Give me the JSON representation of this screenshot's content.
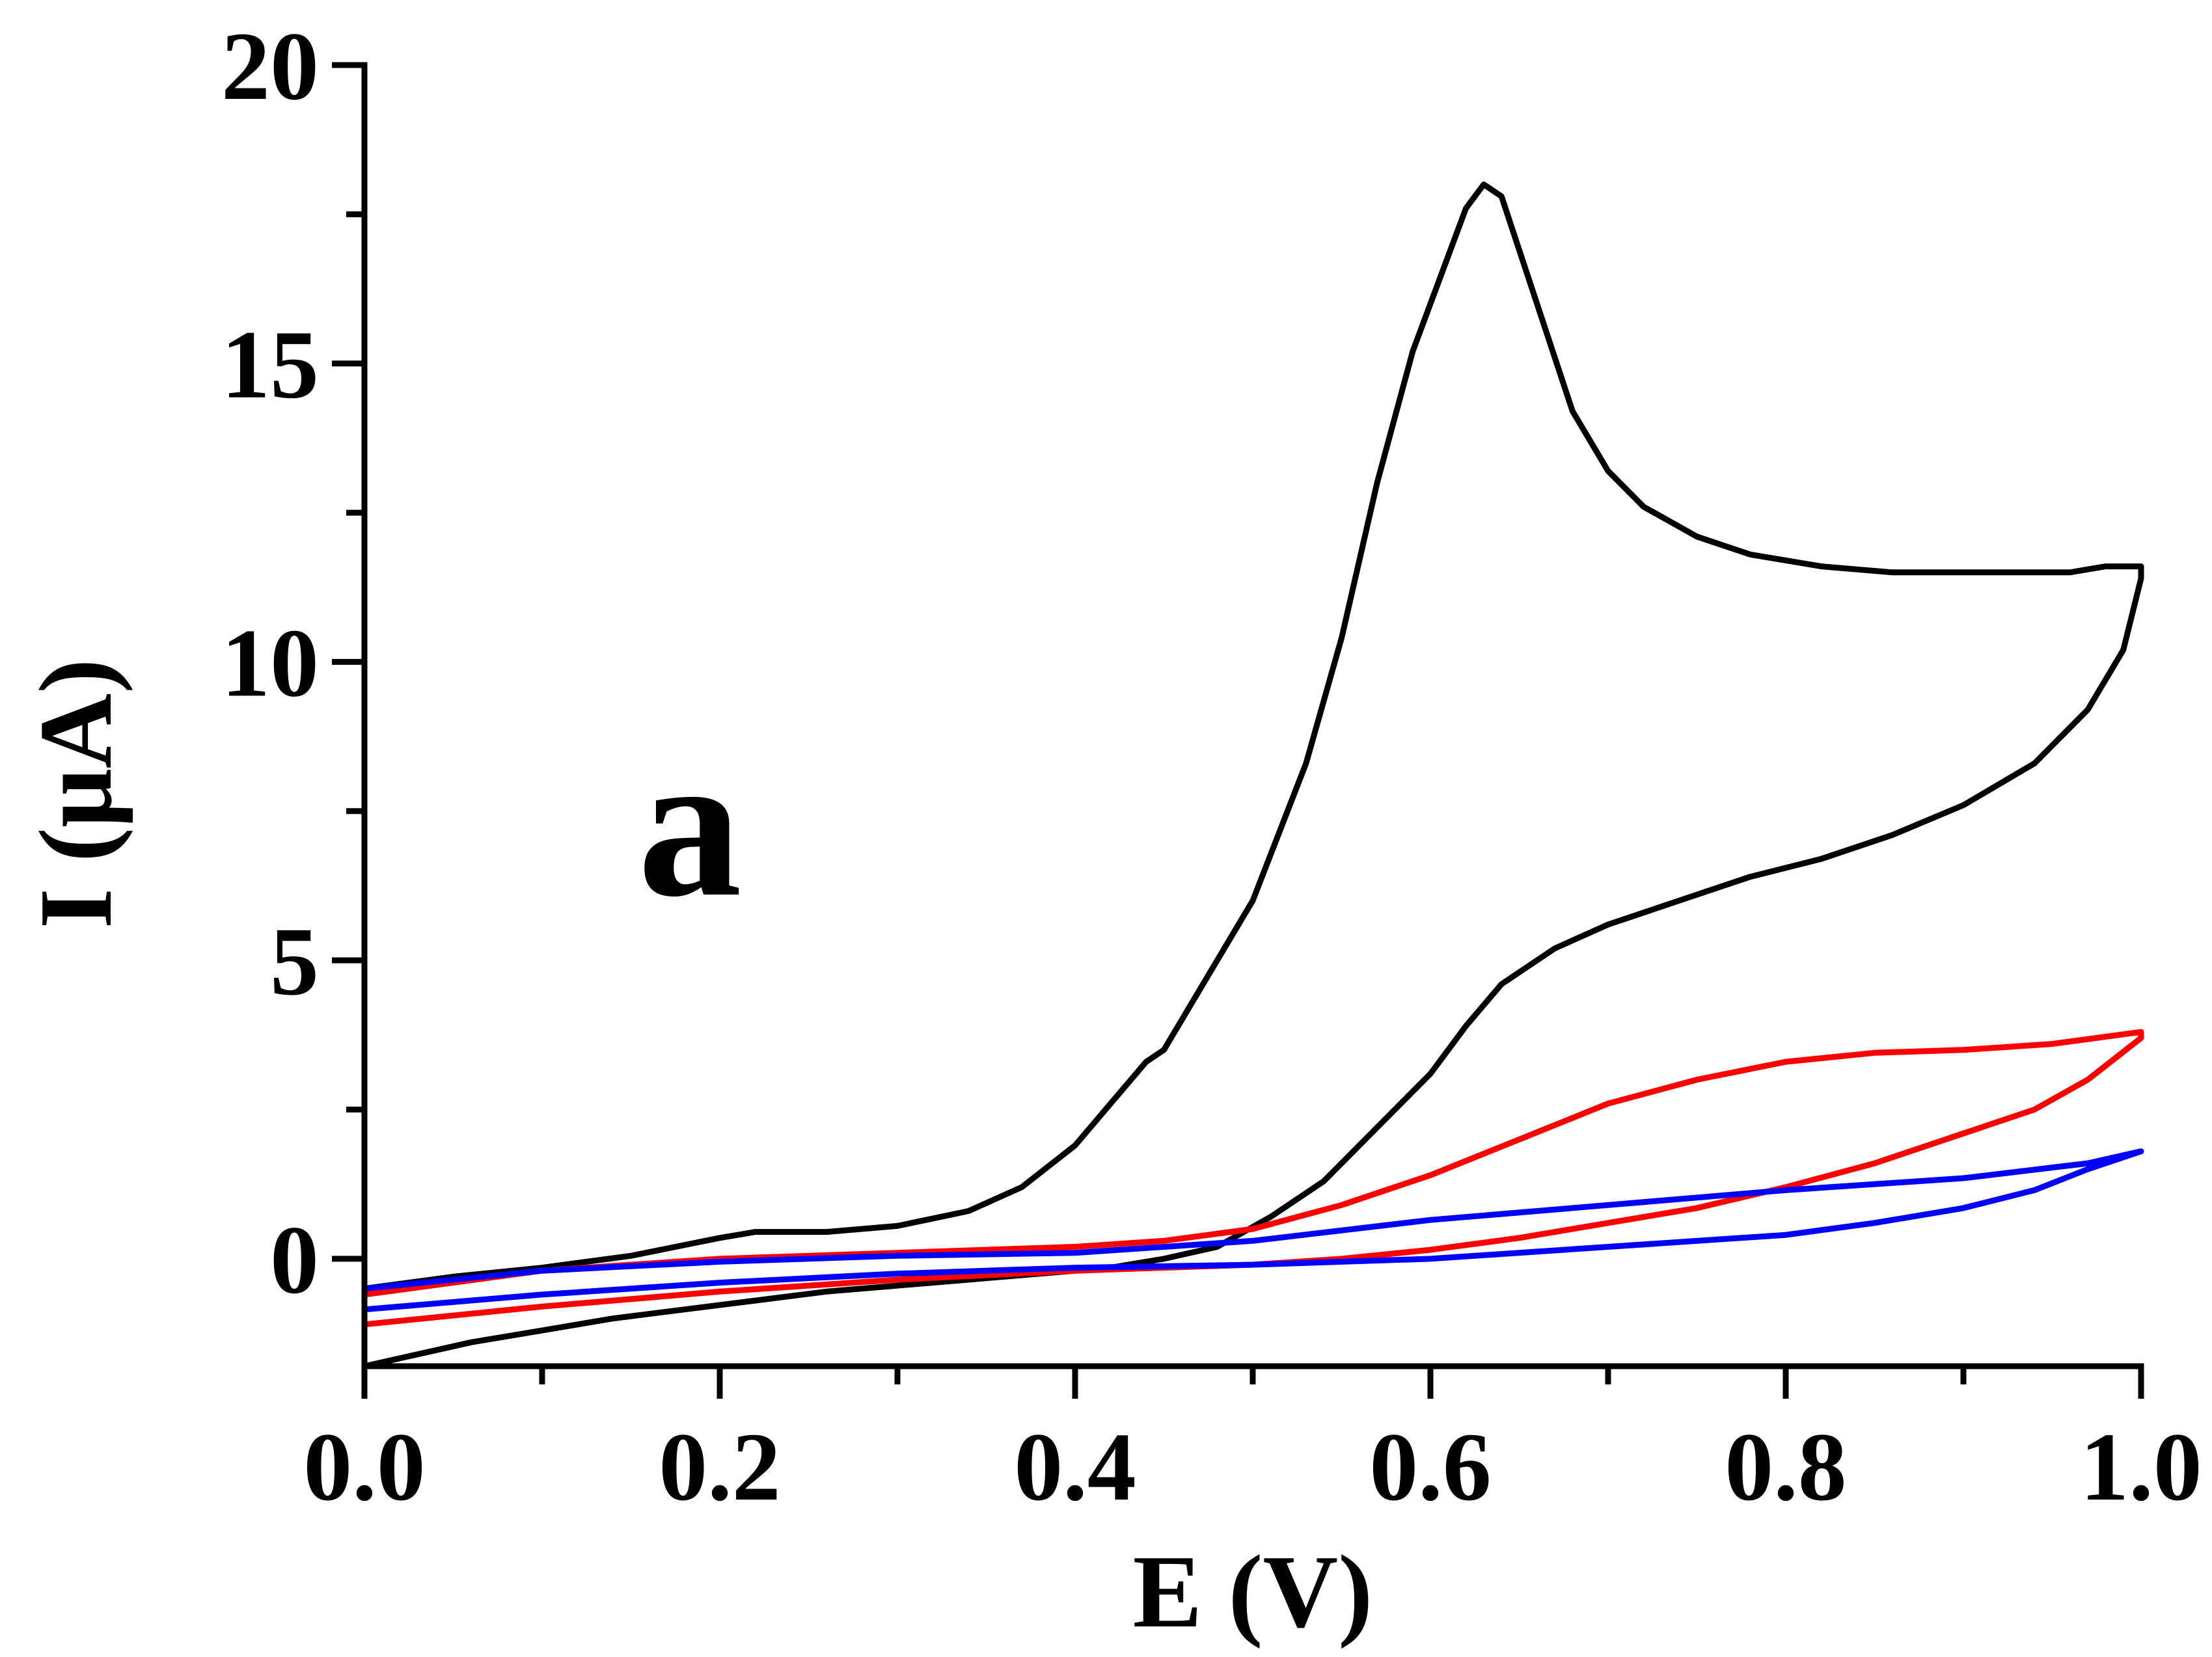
{
  "chart_data": {
    "type": "line",
    "title": "",
    "panel_label": "a",
    "xlabel": "E (V)",
    "ylabel": "I (μA)",
    "xlim": [
      0.0,
      1.0
    ],
    "ylim": [
      -1.8,
      20
    ],
    "xticks": [
      0.0,
      0.2,
      0.4,
      0.6,
      0.8,
      1.0
    ],
    "xtick_labels": [
      "0.0",
      "0.2",
      "0.4",
      "0.6",
      "0.8",
      "1.0"
    ],
    "x_minor_ticks": [
      0.1,
      0.3,
      0.5,
      0.7,
      0.9
    ],
    "yticks": [
      0,
      5,
      10,
      15,
      20
    ],
    "ytick_labels": [
      "0",
      "5",
      "10",
      "15",
      "20"
    ],
    "y_minor_ticks": [
      2.5,
      7.5,
      12.5,
      17.5
    ],
    "grid": false,
    "series": [
      {
        "name": "black",
        "color": "#000000",
        "x": [
          0.0,
          0.05,
          0.1,
          0.15,
          0.2,
          0.22,
          0.26,
          0.3,
          0.34,
          0.37,
          0.4,
          0.42,
          0.44,
          0.45,
          0.47,
          0.5,
          0.53,
          0.55,
          0.57,
          0.59,
          0.61,
          0.62,
          0.63,
          0.64,
          0.66,
          0.68,
          0.7,
          0.72,
          0.75,
          0.78,
          0.82,
          0.86,
          0.9,
          0.93,
          0.96,
          0.98,
          1.0,
          1.0,
          0.99,
          0.97,
          0.94,
          0.9,
          0.86,
          0.82,
          0.78,
          0.74,
          0.7,
          0.67,
          0.64,
          0.62,
          0.6,
          0.57,
          0.54,
          0.51,
          0.48,
          0.45,
          0.42,
          0.38,
          0.34,
          0.3,
          0.26,
          0.22,
          0.18,
          0.14,
          0.1,
          0.06,
          0.03,
          0.0
        ],
        "y": [
          -0.5,
          -0.3,
          -0.15,
          0.05,
          0.35,
          0.45,
          0.45,
          0.55,
          0.8,
          1.2,
          1.9,
          2.6,
          3.3,
          3.5,
          4.5,
          6.0,
          8.3,
          10.4,
          13.0,
          15.2,
          16.8,
          17.6,
          18.0,
          17.8,
          16.0,
          14.2,
          13.2,
          12.6,
          12.1,
          11.8,
          11.6,
          11.5,
          11.5,
          11.5,
          11.5,
          11.6,
          11.6,
          11.4,
          10.2,
          9.2,
          8.3,
          7.6,
          7.1,
          6.7,
          6.4,
          6.0,
          5.6,
          5.2,
          4.6,
          3.9,
          3.1,
          2.2,
          1.3,
          0.7,
          0.2,
          0.0,
          -0.15,
          -0.25,
          -0.35,
          -0.45,
          -0.55,
          -0.7,
          -0.85,
          -1.0,
          -1.2,
          -1.4,
          -1.6,
          -1.8
        ]
      },
      {
        "name": "red",
        "color": "#ff0000",
        "x": [
          0.0,
          0.1,
          0.2,
          0.3,
          0.4,
          0.45,
          0.5,
          0.55,
          0.6,
          0.65,
          0.7,
          0.75,
          0.8,
          0.85,
          0.9,
          0.95,
          1.0,
          1.0,
          0.97,
          0.94,
          0.9,
          0.85,
          0.8,
          0.75,
          0.7,
          0.65,
          0.6,
          0.55,
          0.5,
          0.45,
          0.4,
          0.3,
          0.2,
          0.1,
          0.0
        ],
        "y": [
          -0.6,
          -0.2,
          0.0,
          0.1,
          0.2,
          0.3,
          0.5,
          0.9,
          1.4,
          2.0,
          2.6,
          3.0,
          3.3,
          3.45,
          3.5,
          3.6,
          3.8,
          3.7,
          3.0,
          2.5,
          2.1,
          1.6,
          1.2,
          0.85,
          0.6,
          0.35,
          0.15,
          0.0,
          -0.1,
          -0.15,
          -0.2,
          -0.35,
          -0.55,
          -0.8,
          -1.1
        ]
      },
      {
        "name": "blue",
        "color": "#0000ff",
        "x": [
          0.0,
          0.1,
          0.2,
          0.3,
          0.4,
          0.5,
          0.6,
          0.7,
          0.8,
          0.9,
          0.97,
          1.0,
          1.0,
          0.97,
          0.94,
          0.9,
          0.85,
          0.8,
          0.7,
          0.6,
          0.5,
          0.4,
          0.3,
          0.2,
          0.1,
          0.0
        ],
        "y": [
          -0.5,
          -0.2,
          -0.05,
          0.05,
          0.1,
          0.3,
          0.65,
          0.9,
          1.15,
          1.35,
          1.6,
          1.8,
          1.8,
          1.5,
          1.15,
          0.85,
          0.6,
          0.4,
          0.2,
          0.0,
          -0.1,
          -0.15,
          -0.25,
          -0.4,
          -0.6,
          -0.85
        ]
      }
    ]
  }
}
